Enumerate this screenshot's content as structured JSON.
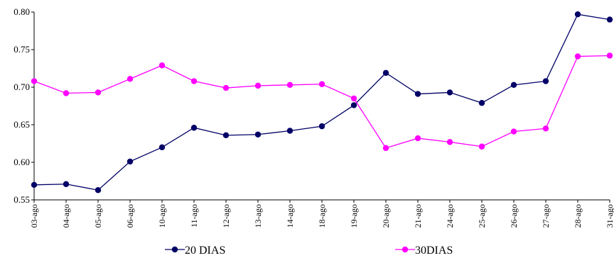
{
  "chart_data": {
    "type": "line",
    "categories": [
      "03-ago",
      "04-ago",
      "05-ago",
      "06-ago",
      "10-ago",
      "11-ago",
      "12-ago",
      "13-ago",
      "14-ago",
      "18-ago",
      "19-ago",
      "20-ago",
      "21-ago",
      "24-ago",
      "25-ago",
      "26-ago",
      "27-ago",
      "28-ago",
      "31-ago"
    ],
    "series": [
      {
        "name": "20 DIAS",
        "color": "#000066",
        "values": [
          0.57,
          0.571,
          0.563,
          0.601,
          0.62,
          0.646,
          0.636,
          0.637,
          0.642,
          0.648,
          0.676,
          0.719,
          0.691,
          0.693,
          0.679,
          0.703,
          0.708,
          0.797,
          0.79
        ]
      },
      {
        "name": "30DIAS",
        "color": "#ff00ff",
        "values": [
          0.708,
          0.692,
          0.693,
          0.711,
          0.729,
          0.708,
          0.699,
          0.702,
          0.703,
          0.704,
          0.685,
          0.619,
          0.632,
          0.627,
          0.621,
          0.641,
          0.645,
          0.741,
          0.742
        ]
      }
    ],
    "ylim": [
      0.55,
      0.8
    ],
    "yticks": [
      "0.55",
      "0.60",
      "0.65",
      "0.70",
      "0.75",
      "0.80"
    ],
    "title": "",
    "xlabel": "",
    "ylabel": "",
    "grid": false,
    "legend_position": "bottom"
  }
}
